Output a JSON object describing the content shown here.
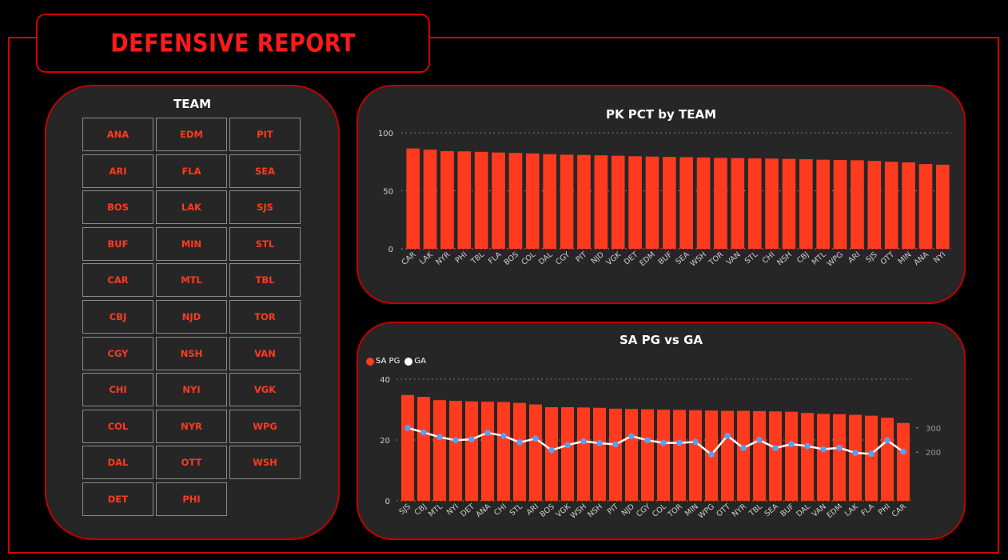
{
  "header": {
    "title": "DEFENSIVE REPORT"
  },
  "colors": {
    "accent": "#ff3b1f",
    "border": "#d40000",
    "panel": "#262626",
    "line": "#ffffff",
    "marker": "#5aa0f0"
  },
  "slicer": {
    "title": "TEAM",
    "teams": [
      "ANA",
      "EDM",
      "PIT",
      "ARI",
      "FLA",
      "SEA",
      "BOS",
      "LAK",
      "SJS",
      "BUF",
      "MIN",
      "STL",
      "CAR",
      "MTL",
      "TBL",
      "CBJ",
      "NJD",
      "TOR",
      "CGY",
      "NSH",
      "VAN",
      "CHI",
      "NYI",
      "VGK",
      "COL",
      "NYR",
      "WPG",
      "DAL",
      "OTT",
      "WSH",
      "DET",
      "PHI"
    ]
  },
  "chart_data": [
    {
      "type": "bar",
      "title": "PK PCT by TEAM",
      "categories": [
        "CAR",
        "LAK",
        "NYR",
        "PHI",
        "TBL",
        "FLA",
        "BOS",
        "COL",
        "DAL",
        "CGY",
        "PIT",
        "NJD",
        "VGK",
        "DET",
        "EDM",
        "BUF",
        "SEA",
        "WSH",
        "TOR",
        "VAN",
        "STL",
        "CHI",
        "NSH",
        "CBJ",
        "MTL",
        "WPG",
        "ARI",
        "SJS",
        "OTT",
        "MIN",
        "ANA",
        "NYI"
      ],
      "values": [
        86.5,
        85.5,
        84.2,
        84.0,
        83.6,
        83.0,
        82.6,
        82.2,
        81.6,
        81.1,
        80.9,
        80.6,
        80.2,
        79.8,
        79.5,
        79.3,
        79.0,
        78.7,
        78.4,
        78.2,
        78.0,
        77.8,
        77.5,
        77.2,
        76.8,
        76.5,
        76.3,
        75.8,
        75.0,
        74.5,
        73.0,
        72.5
      ],
      "yticks": [
        "0",
        "50",
        "100"
      ],
      "ylim": [
        0,
        100
      ],
      "grid": true
    },
    {
      "type": "bar",
      "title": "SA PG vs GA",
      "categories": [
        "SJS",
        "CBJ",
        "MTL",
        "NYI",
        "DET",
        "ANA",
        "CHI",
        "STL",
        "ARI",
        "BOS",
        "VGK",
        "WSH",
        "NSH",
        "PIT",
        "NJD",
        "CGY",
        "COL",
        "TOR",
        "MIN",
        "WPG",
        "OTT",
        "NYR",
        "TBL",
        "SEA",
        "BUF",
        "DAL",
        "VAN",
        "EDM",
        "LAK",
        "FLA",
        "PHI",
        "CAR"
      ],
      "series": [
        {
          "name": "SA PG",
          "axis": "left",
          "values": [
            34.8,
            34.2,
            33.1,
            32.9,
            32.7,
            32.6,
            32.5,
            32.2,
            31.7,
            30.8,
            30.8,
            30.7,
            30.6,
            30.3,
            30.2,
            30.1,
            30.0,
            29.9,
            29.8,
            29.7,
            29.6,
            29.6,
            29.5,
            29.4,
            29.3,
            28.9,
            28.6,
            28.5,
            28.3,
            28.0,
            27.3,
            25.6
          ]
        },
        {
          "name": "GA",
          "axis": "right",
          "values": [
            300,
            281,
            262,
            249,
            253,
            280,
            267,
            240,
            256,
            208,
            229,
            245,
            237,
            232,
            266,
            249,
            238,
            238,
            242,
            190,
            267,
            217,
            250,
            217,
            233,
            225,
            212,
            218,
            197,
            193,
            248,
            202
          ]
        }
      ],
      "yticks_left": [
        "0",
        "20",
        "40"
      ],
      "ylim_left": [
        0,
        40
      ],
      "yticks_right": [
        "200",
        "300"
      ],
      "ylim_right": [
        0,
        500
      ],
      "grid": true
    }
  ]
}
